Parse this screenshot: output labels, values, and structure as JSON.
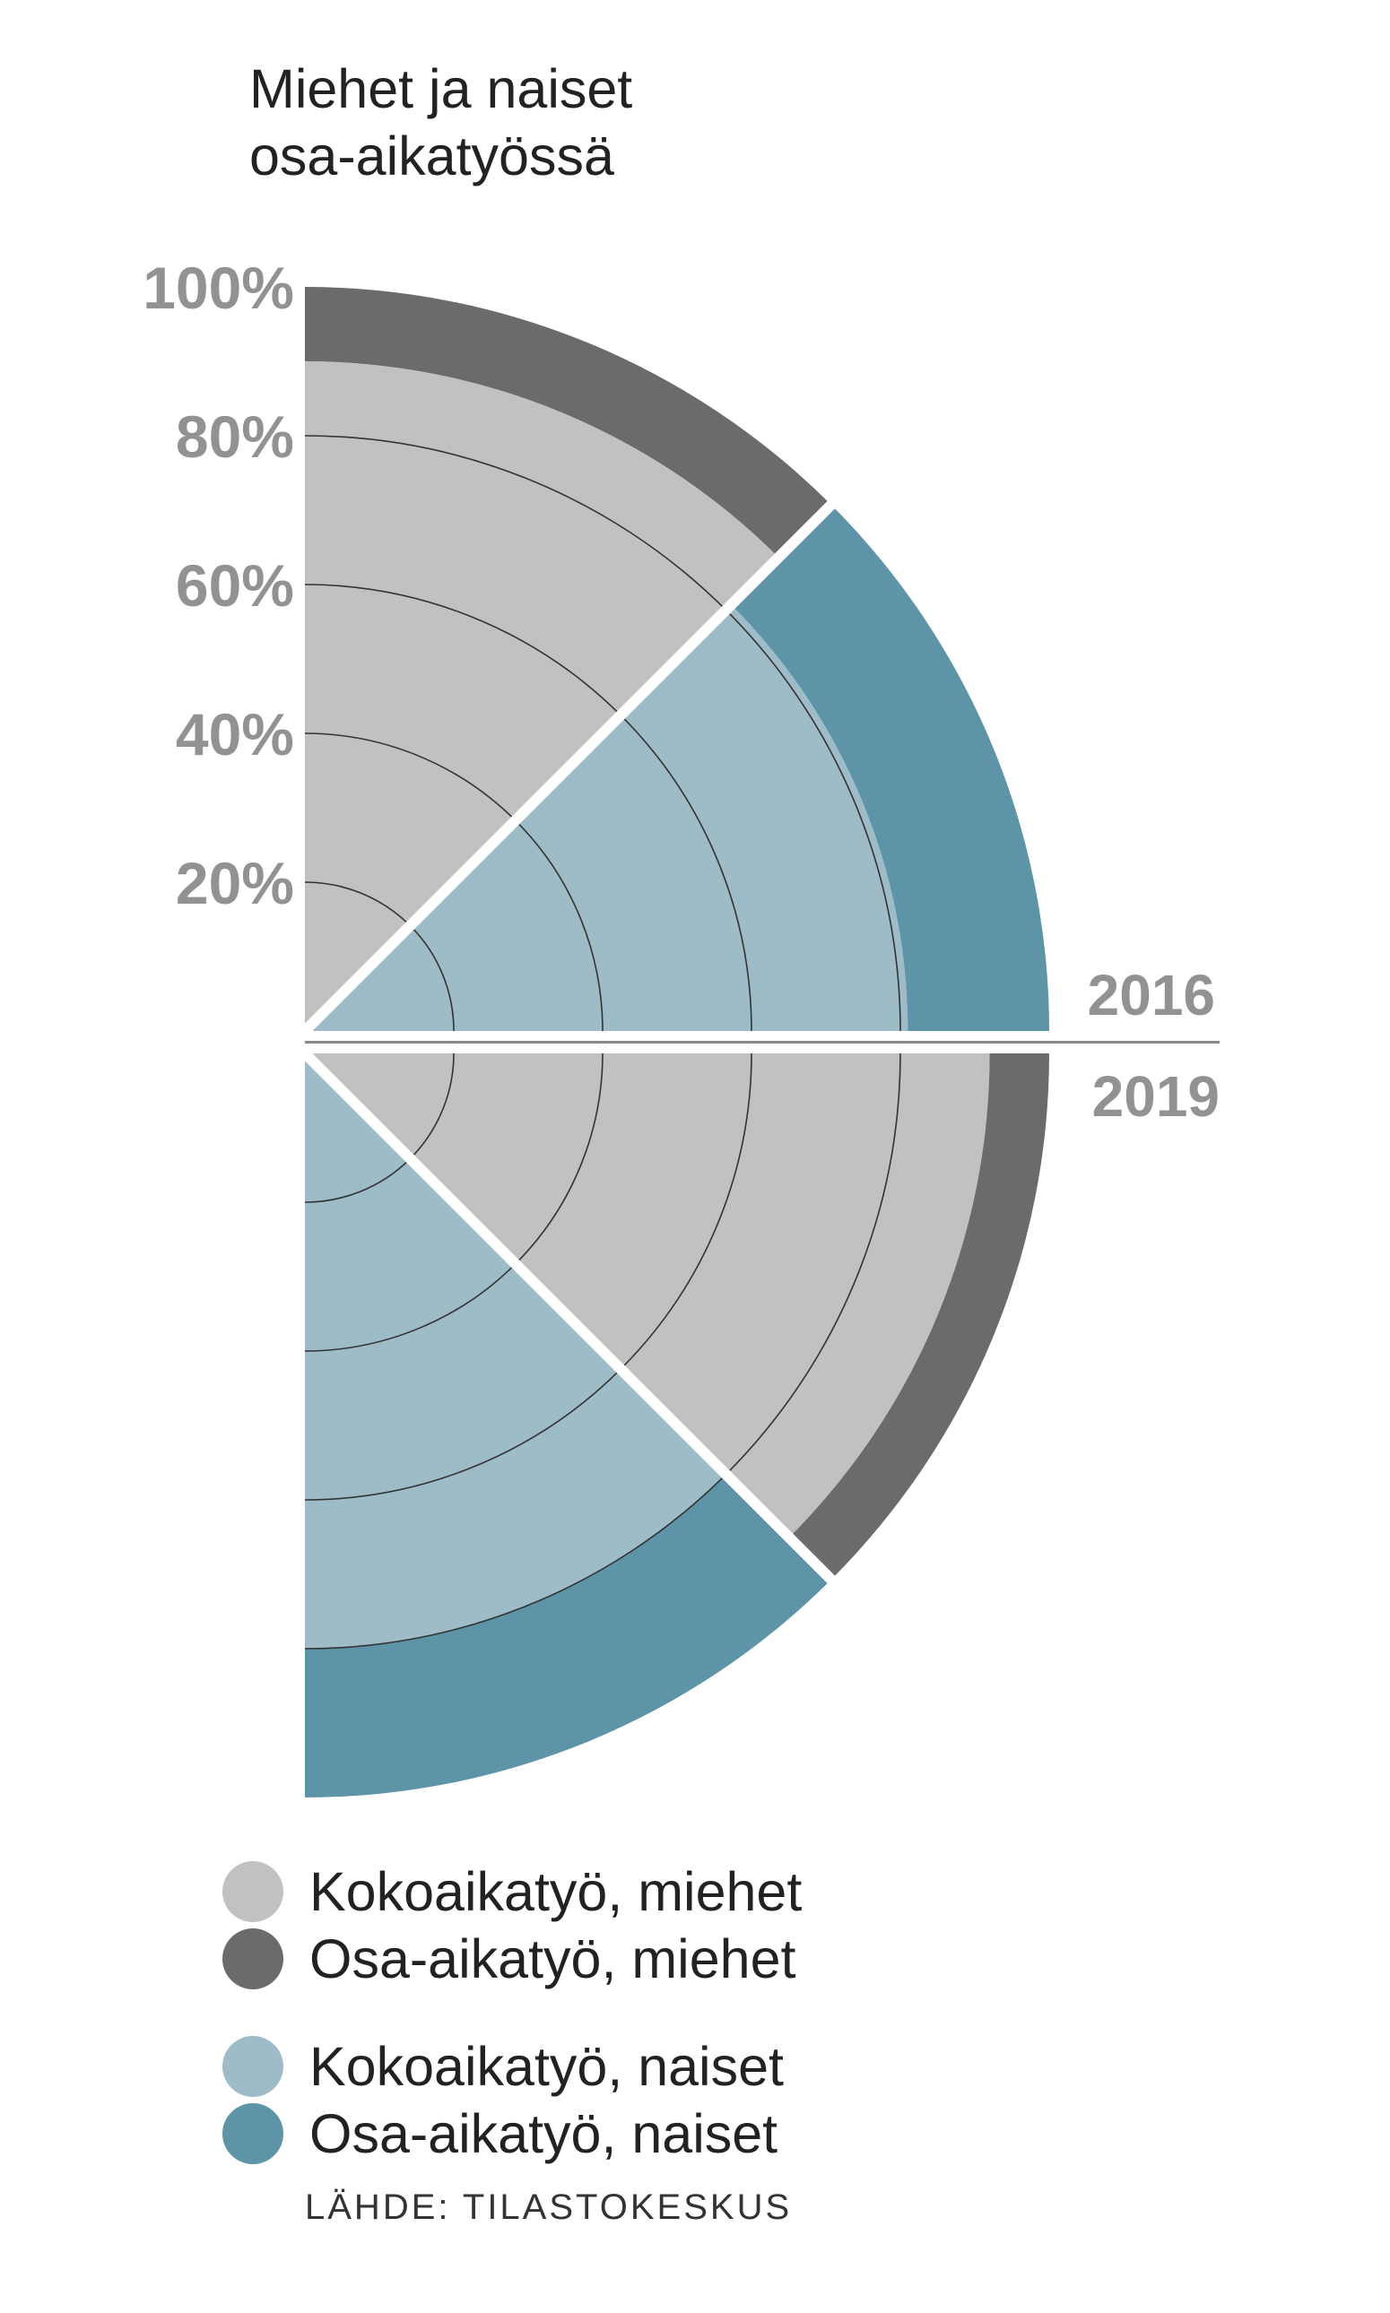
{
  "title_lines": [
    "Miehet ja naiset",
    "osa-aikatyössä"
  ],
  "source": "LÄHDE: TILASTOKESKUS",
  "colors": {
    "men_fulltime": "#c2c1c2",
    "men_parttime": "#6b6b6a",
    "women_fulltime": "#9ebbc8",
    "women_parttime": "#5d94a8",
    "gridline": "#333333",
    "divider": "#8a8a8a"
  },
  "chart_data": {
    "type": "polar-area",
    "title": "Miehet ja naiset osa-aikatyössä",
    "radial_ticks": [
      "20%",
      "40%",
      "60%",
      "80%",
      "100%"
    ],
    "radial_tick_values": [
      20,
      40,
      60,
      80,
      100
    ],
    "rlim": [
      0,
      100
    ],
    "categories": [
      "2016",
      "2019"
    ],
    "series": [
      {
        "name": "Kokoaikatyö, miehet",
        "color_key": "men_fulltime",
        "values": [
          90,
          92
        ]
      },
      {
        "name": "Osa-aikatyö, miehet",
        "color_key": "men_parttime",
        "values": [
          10,
          8
        ]
      },
      {
        "name": "Kokoaikatyö, naiset",
        "color_key": "women_fulltime",
        "values": [
          81,
          80
        ]
      },
      {
        "name": "Osa-aikatyö, naiset",
        "color_key": "women_parttime",
        "values": [
          19,
          20
        ]
      }
    ],
    "legend": [
      {
        "label": "Kokoaikatyö, miehet",
        "color_key": "men_fulltime"
      },
      {
        "label": "Osa-aikatyö, miehet",
        "color_key": "men_parttime"
      },
      {
        "label": "Kokoaikatyö, naiset",
        "color_key": "women_fulltime"
      },
      {
        "label": "Osa-aikatyö, naiset",
        "color_key": "women_parttime"
      }
    ]
  }
}
